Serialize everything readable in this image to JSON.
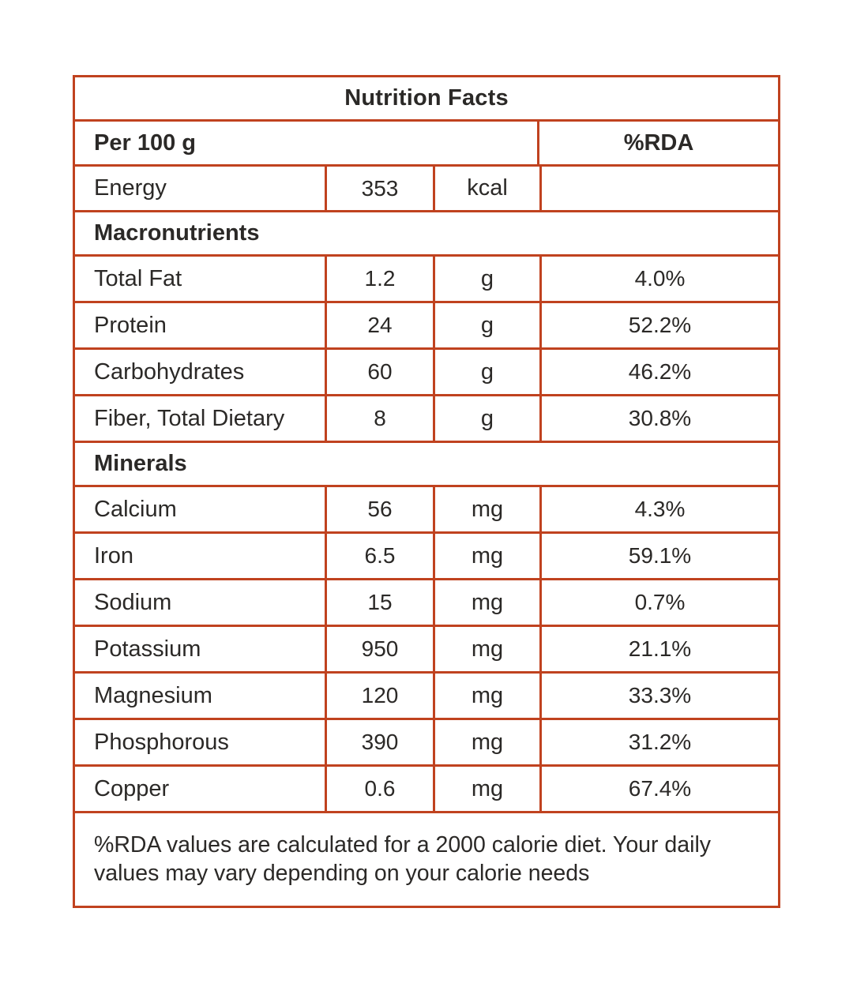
{
  "colors": {
    "border": "#c0421f",
    "text": "#2b2927",
    "background": "#ffffff"
  },
  "table": {
    "title": "Nutrition Facts",
    "header": {
      "serving": "Per 100 g",
      "rda": "%RDA"
    },
    "energy": {
      "label": "Energy",
      "value": "353",
      "unit": "kcal",
      "rda": ""
    },
    "sections": [
      {
        "name": "Macronutrients",
        "rows": [
          {
            "label": "Total Fat",
            "value": "1.2",
            "unit": "g",
            "rda": "4.0%"
          },
          {
            "label": "Protein",
            "value": "24",
            "unit": "g",
            "rda": "52.2%"
          },
          {
            "label": "Carbohydrates",
            "value": "60",
            "unit": "g",
            "rda": "46.2%"
          },
          {
            "label": "Fiber, Total Dietary",
            "value": "8",
            "unit": "g",
            "rda": "30.8%"
          }
        ]
      },
      {
        "name": "Minerals",
        "rows": [
          {
            "label": "Calcium",
            "value": "56",
            "unit": "mg",
            "rda": "4.3%"
          },
          {
            "label": "Iron",
            "value": "6.5",
            "unit": "mg",
            "rda": "59.1%"
          },
          {
            "label": "Sodium",
            "value": "15",
            "unit": "mg",
            "rda": "0.7%"
          },
          {
            "label": "Potassium",
            "value": "950",
            "unit": "mg",
            "rda": "21.1%"
          },
          {
            "label": "Magnesium",
            "value": "120",
            "unit": "mg",
            "rda": "33.3%"
          },
          {
            "label": "Phosphorous",
            "value": "390",
            "unit": "mg",
            "rda": "31.2%"
          },
          {
            "label": "Copper",
            "value": "0.6",
            "unit": "mg",
            "rda": "67.4%"
          }
        ]
      }
    ],
    "footnote": "%RDA values are calculated for a 2000 calorie diet. Your daily values may vary depending on your calorie needs"
  }
}
